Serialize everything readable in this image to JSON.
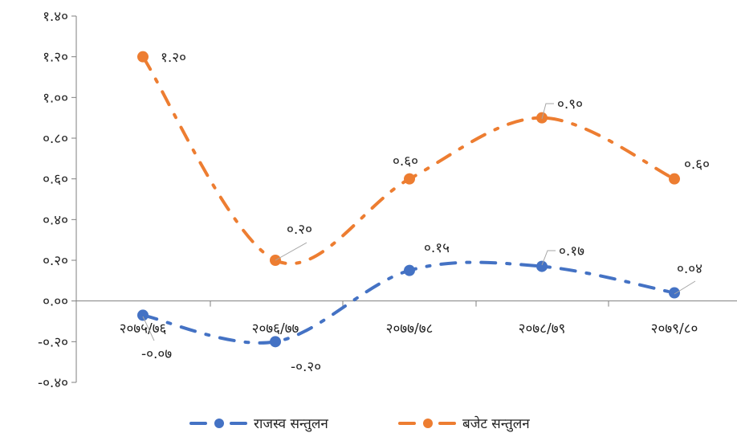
{
  "chart_data": {
    "type": "line",
    "categories": [
      "२०७५/७६",
      "२०७६/७७",
      "२०७७/७८",
      "२०७८/७९",
      "२०७९/८०"
    ],
    "series": [
      {
        "name": "राजस्व सन्तुलन",
        "values": [
          -0.07,
          -0.2,
          0.15,
          0.17,
          0.04
        ],
        "labels": [
          "-०.०७",
          "-०.२०",
          "०.१५",
          "०.१७",
          "०.०४"
        ],
        "color": "#4472C4",
        "style": "dash-dot",
        "smooth": true
      },
      {
        "name": "बजेट सन्तुलन",
        "values": [
          1.2,
          0.2,
          0.6,
          0.9,
          0.6
        ],
        "labels": [
          "१.२०",
          "०.२०",
          "०.६०",
          "०.९०",
          "०.६०"
        ],
        "color": "#ED7D31",
        "style": "dash-dot",
        "smooth": true
      }
    ],
    "y_ticks": [
      "-०.४०",
      "-०.२०",
      "०.००",
      "०.२०",
      "०.४०",
      "०.६०",
      "०.८०",
      "१.००",
      "१.२०",
      "१.४०"
    ],
    "ylim": [
      -0.4,
      1.4
    ],
    "y_step": 0.2,
    "grid": false,
    "legend_position": "bottom"
  }
}
